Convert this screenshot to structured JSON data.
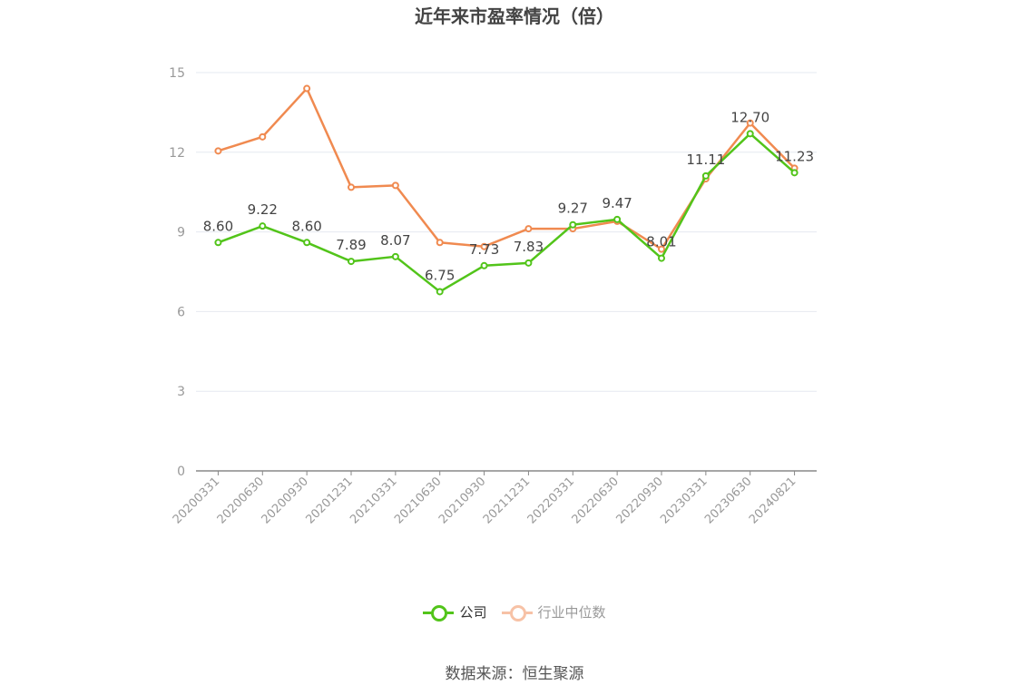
{
  "chart_data": {
    "type": "line",
    "title": "近年来市盈率情况（倍）",
    "categories": [
      "20200331",
      "20200630",
      "20200930",
      "20201231",
      "20210331",
      "20210630",
      "20210930",
      "20211231",
      "20220331",
      "20220630",
      "20220930",
      "20230331",
      "20230630",
      "20240821"
    ],
    "series": [
      {
        "name": "公司",
        "color": "#52c41a",
        "values": [
          8.6,
          9.22,
          8.6,
          7.89,
          8.07,
          6.75,
          7.73,
          7.83,
          9.27,
          9.47,
          8.01,
          11.11,
          12.7,
          11.23
        ],
        "labels": [
          "8.60",
          "9.22",
          "8.60",
          "7.89",
          "8.07",
          "6.75",
          "7.73",
          "7.83",
          "9.27",
          "9.47",
          "8.01",
          "11.11",
          "12.70",
          "11.23"
        ]
      },
      {
        "name": "行业中位数",
        "color": "#f08a50",
        "values": [
          12.05,
          12.58,
          14.4,
          10.68,
          10.75,
          8.6,
          8.45,
          9.12,
          9.12,
          9.4,
          8.35,
          11.0,
          13.1,
          11.4
        ]
      }
    ],
    "ylim": [
      0,
      15
    ],
    "yticks": [
      0,
      3,
      6,
      9,
      12,
      15
    ],
    "grid": true,
    "legend_position": "bottom"
  },
  "source": "数据来源：恒生聚源"
}
